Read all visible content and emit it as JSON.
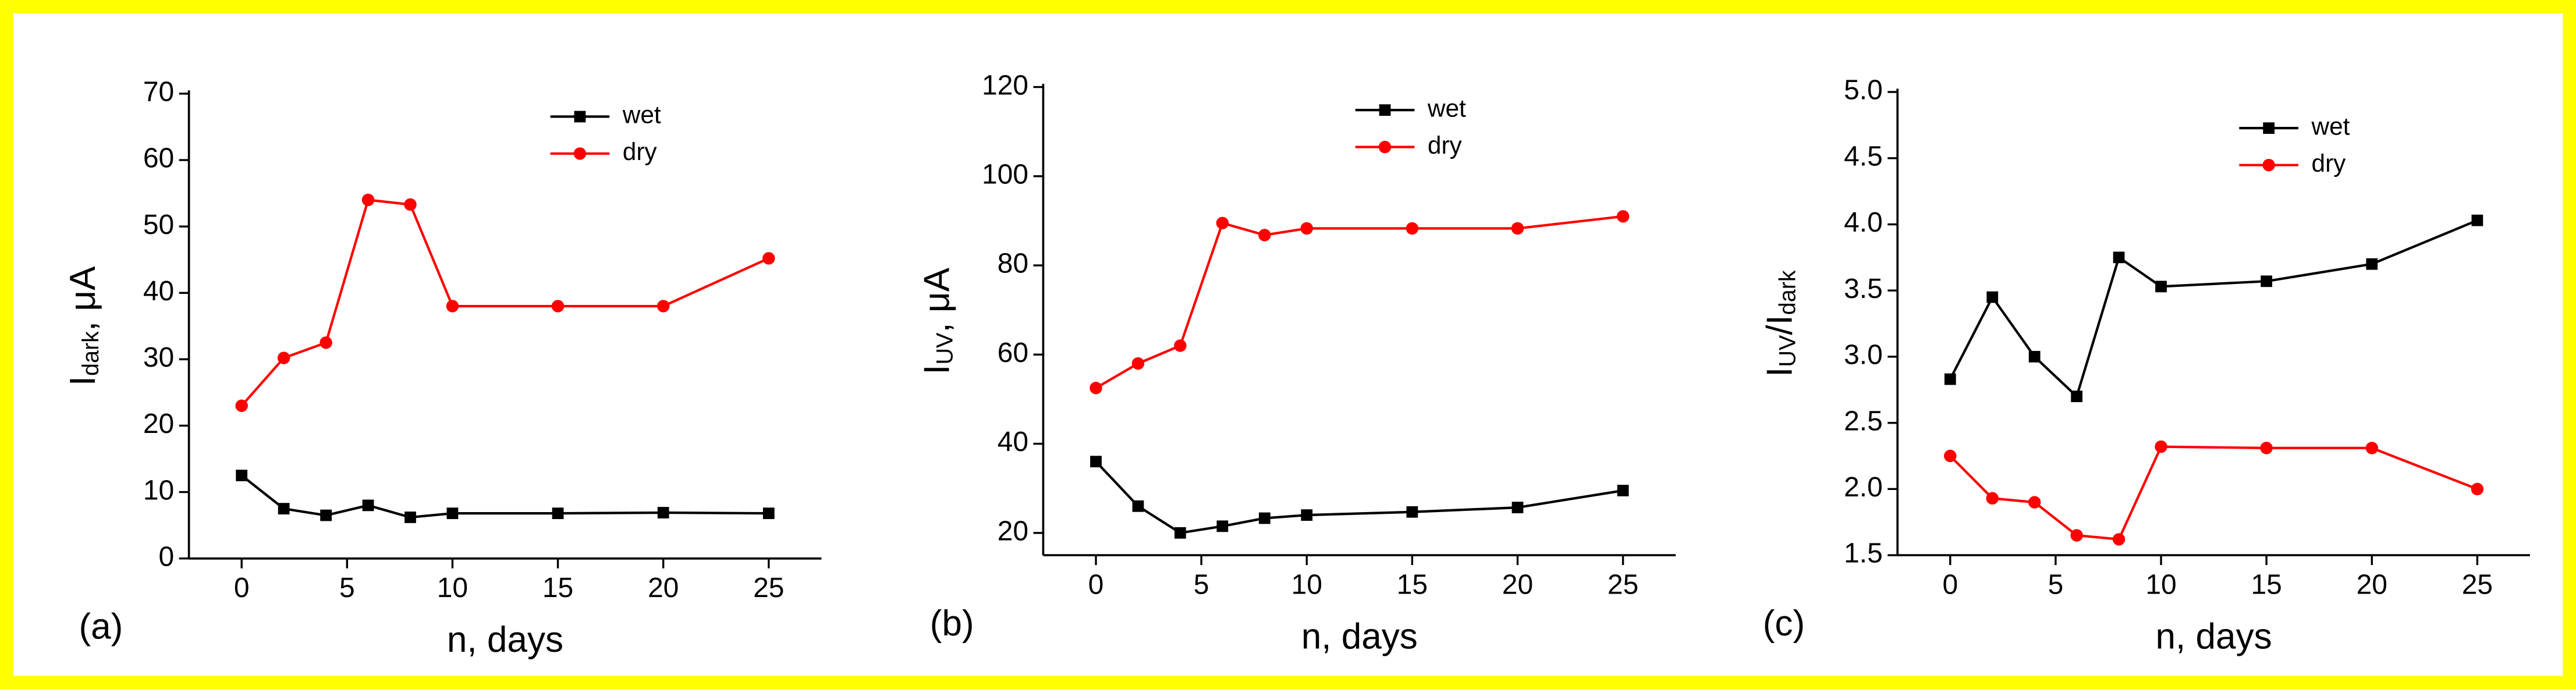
{
  "chart_data": [
    {
      "type": "line",
      "panel": "(a)",
      "xlabel": "n, days",
      "ylabel": [
        "I",
        "dark",
        ", μA"
      ],
      "x": [
        0,
        2,
        4,
        6,
        8,
        10,
        15,
        20,
        25
      ],
      "xlim": [
        -2.5,
        27.5
      ],
      "xticks": [
        0,
        5,
        10,
        15,
        20,
        25
      ],
      "ylim": [
        0,
        70
      ],
      "yticks": [
        0,
        10,
        20,
        30,
        40,
        50,
        60,
        70
      ],
      "series": [
        {
          "name": "wet",
          "color": "#000000",
          "marker": "square",
          "values": [
            12.5,
            7.5,
            6.5,
            8,
            6.2,
            6.8,
            6.8,
            6.9,
            6.8
          ]
        },
        {
          "name": "dry",
          "color": "#ff0000",
          "marker": "circle",
          "values": [
            23,
            30.2,
            32.5,
            54,
            53.3,
            38,
            38,
            38,
            45.2
          ]
        }
      ]
    },
    {
      "type": "line",
      "panel": "(b)",
      "xlabel": "n, days",
      "ylabel": [
        "I",
        "UV",
        ", μA"
      ],
      "x": [
        0,
        2,
        4,
        6,
        8,
        10,
        15,
        20,
        25
      ],
      "xlim": [
        -2.5,
        27.5
      ],
      "xticks": [
        0,
        5,
        10,
        15,
        20,
        25
      ],
      "ylim": [
        15,
        120
      ],
      "yticks": [
        20,
        40,
        60,
        80,
        100,
        120
      ],
      "series": [
        {
          "name": "wet",
          "color": "#000000",
          "marker": "square",
          "values": [
            36,
            26,
            20,
            21.5,
            23.3,
            24,
            24.7,
            25.7,
            29.5
          ]
        },
        {
          "name": "dry",
          "color": "#ff0000",
          "marker": "circle",
          "values": [
            52.5,
            58,
            62,
            89.5,
            86.8,
            88.3,
            88.3,
            88.3,
            91
          ]
        }
      ]
    },
    {
      "type": "line",
      "panel": "(c)",
      "xlabel": "n, days",
      "ylabel": [
        "I",
        "UV",
        "/I",
        "dark"
      ],
      "x": [
        0,
        2,
        4,
        6,
        8,
        10,
        15,
        20,
        25
      ],
      "xlim": [
        -2.5,
        27.5
      ],
      "xticks": [
        0,
        5,
        10,
        15,
        20,
        25
      ],
      "ylim": [
        1.5,
        5.0
      ],
      "yticks": [
        1.5,
        {
          "value": 2,
          "label": "2.0"
        },
        2.5,
        {
          "value": 3,
          "label": "3.0"
        },
        3.5,
        {
          "value": 4,
          "label": "4.0"
        },
        4.5,
        {
          "value": 5,
          "label": "5.0"
        }
      ],
      "series": [
        {
          "name": "wet",
          "color": "#000000",
          "marker": "square",
          "values": [
            2.83,
            3.45,
            3.0,
            2.7,
            3.75,
            3.53,
            3.57,
            3.7,
            4.03
          ]
        },
        {
          "name": "dry",
          "color": "#ff0000",
          "marker": "circle",
          "values": [
            2.25,
            1.93,
            1.9,
            1.65,
            1.62,
            2.32,
            2.31,
            2.31,
            2.0
          ]
        }
      ]
    }
  ]
}
